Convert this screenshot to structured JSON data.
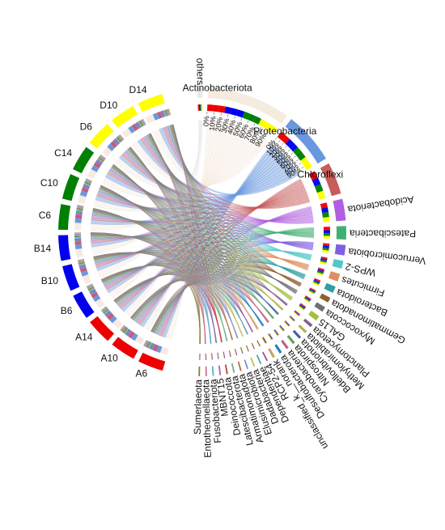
{
  "chart_data": {
    "type": "chord",
    "title": "",
    "samples": [
      "A6",
      "A10",
      "A14",
      "B6",
      "B10",
      "B14",
      "C6",
      "C10",
      "C14",
      "D6",
      "D10",
      "D14"
    ],
    "taxa": [
      "others",
      "Actinobacteriota",
      "Proteobacteria",
      "Chloroflexi",
      "Acidobacteriota",
      "Patescibacteria",
      "Verrucomicrobiota",
      "WPS-2",
      "Firmicutes",
      "Bacteroidota",
      "Gemmatimonadota",
      "Myxococcota",
      "GAL15",
      "Planctomycetota",
      "Methylomirabilota",
      "Bdellovibrionota",
      "Nitrospirota",
      "Cyanobacteria",
      "Desulfobacterota",
      "unclassified_k__norank",
      "RCP2-54",
      "Dependentiae",
      "Dadabacteria",
      "Elusimicrobiota",
      "Armatimonadota",
      "Latescibacterota",
      "Deinococcota",
      "MBNT15",
      "Fusobacteriota",
      "Entotheonellaeota",
      "Sumerlaeota"
    ],
    "taxa_colors": [
      "#e8e8e8",
      "#f6ebe0",
      "#6a98e0",
      "#c85c5c",
      "#b060e0",
      "#40b070",
      "#8060e0",
      "#50c8c8",
      "#e09060",
      "#30a0a0",
      "#906030",
      "#707070",
      "#a0c040",
      "#806090",
      "#b0b040",
      "#4060a0",
      "#60a060",
      "#c06080",
      "#2080c0",
      "#d0a060",
      "#a050a0",
      "#50a0b0",
      "#c0c060",
      "#8090c0",
      "#b07050",
      "#70b090",
      "#c04040",
      "#9070b0",
      "#60b0d0",
      "#d07090",
      "#808040"
    ],
    "sample_colors": [
      "#ee0000",
      "#ee0000",
      "#ee0000",
      "#0000ee",
      "#0000ee",
      "#0000ee",
      "#008000",
      "#008000",
      "#008000",
      "#ffff00",
      "#ffff00",
      "#ffff00"
    ],
    "percent_ticks": [
      "0%",
      "10%",
      "20%",
      "30%",
      "40%",
      "50%",
      "60%",
      "70%",
      "80%",
      "90%"
    ],
    "relative_abundance": {
      "A6": [
        0.02,
        0.3,
        0.18,
        0.12,
        0.09,
        0.07,
        0.04,
        0.03,
        0.03,
        0.03,
        0.02,
        0.02,
        0.02,
        0.02,
        0.01,
        0.01,
        0.01,
        0.01,
        0.01,
        0.01,
        0.01,
        0.01,
        0.005,
        0.005,
        0.005,
        0.005,
        0.005,
        0.005,
        0.005,
        0.005,
        0.005
      ],
      "A10": [
        0.02,
        0.31,
        0.19,
        0.13,
        0.09,
        0.06,
        0.04,
        0.03,
        0.03,
        0.03,
        0.02,
        0.02,
        0.02,
        0.02,
        0.01,
        0.01,
        0.01,
        0.01,
        0.01,
        0.01,
        0.01,
        0.005,
        0.005,
        0.005,
        0.005,
        0.005,
        0.005,
        0.005,
        0.005,
        0.005,
        0.005
      ],
      "A14": [
        0.02,
        0.33,
        0.2,
        0.13,
        0.08,
        0.05,
        0.04,
        0.03,
        0.03,
        0.02,
        0.02,
        0.02,
        0.02,
        0.01,
        0.01,
        0.01,
        0.01,
        0.01,
        0.01,
        0.01,
        0.005,
        0.005,
        0.005,
        0.005,
        0.005,
        0.005,
        0.005,
        0.005,
        0.005,
        0.005,
        0.005
      ],
      "B6": [
        0.02,
        0.32,
        0.2,
        0.12,
        0.08,
        0.06,
        0.04,
        0.03,
        0.03,
        0.03,
        0.02,
        0.02,
        0.02,
        0.01,
        0.01,
        0.01,
        0.01,
        0.01,
        0.01,
        0.01,
        0.005,
        0.005,
        0.005,
        0.005,
        0.005,
        0.005,
        0.005,
        0.005,
        0.005,
        0.005,
        0.005
      ],
      "B10": [
        0.02,
        0.34,
        0.19,
        0.12,
        0.08,
        0.05,
        0.04,
        0.03,
        0.03,
        0.02,
        0.02,
        0.02,
        0.02,
        0.01,
        0.01,
        0.01,
        0.01,
        0.01,
        0.01,
        0.01,
        0.005,
        0.005,
        0.005,
        0.005,
        0.005,
        0.005,
        0.005,
        0.005,
        0.005,
        0.005,
        0.005
      ],
      "B14": [
        0.02,
        0.35,
        0.2,
        0.11,
        0.07,
        0.05,
        0.04,
        0.03,
        0.03,
        0.02,
        0.02,
        0.02,
        0.02,
        0.01,
        0.01,
        0.01,
        0.01,
        0.01,
        0.01,
        0.01,
        0.005,
        0.005,
        0.005,
        0.005,
        0.005,
        0.005,
        0.005,
        0.005,
        0.005,
        0.005,
        0.005
      ],
      "C6": [
        0.02,
        0.3,
        0.21,
        0.13,
        0.09,
        0.05,
        0.04,
        0.03,
        0.03,
        0.03,
        0.02,
        0.02,
        0.02,
        0.01,
        0.01,
        0.01,
        0.01,
        0.01,
        0.01,
        0.01,
        0.005,
        0.005,
        0.005,
        0.005,
        0.005,
        0.005,
        0.005,
        0.005,
        0.005,
        0.005,
        0.005
      ],
      "C10": [
        0.02,
        0.31,
        0.21,
        0.12,
        0.09,
        0.05,
        0.04,
        0.03,
        0.03,
        0.03,
        0.02,
        0.02,
        0.02,
        0.01,
        0.01,
        0.01,
        0.01,
        0.01,
        0.01,
        0.01,
        0.005,
        0.005,
        0.005,
        0.005,
        0.005,
        0.005,
        0.005,
        0.005,
        0.005,
        0.005,
        0.005
      ],
      "C14": [
        0.02,
        0.33,
        0.22,
        0.12,
        0.08,
        0.04,
        0.04,
        0.03,
        0.03,
        0.02,
        0.02,
        0.02,
        0.02,
        0.01,
        0.01,
        0.01,
        0.01,
        0.01,
        0.01,
        0.01,
        0.005,
        0.005,
        0.005,
        0.005,
        0.005,
        0.005,
        0.005,
        0.005,
        0.005,
        0.005,
        0.005
      ],
      "D6": [
        0.02,
        0.31,
        0.2,
        0.13,
        0.09,
        0.05,
        0.04,
        0.03,
        0.03,
        0.03,
        0.02,
        0.02,
        0.02,
        0.01,
        0.01,
        0.01,
        0.01,
        0.01,
        0.01,
        0.01,
        0.005,
        0.005,
        0.005,
        0.005,
        0.005,
        0.005,
        0.005,
        0.005,
        0.005,
        0.005,
        0.005
      ],
      "D10": [
        0.02,
        0.32,
        0.2,
        0.13,
        0.08,
        0.05,
        0.04,
        0.03,
        0.03,
        0.03,
        0.02,
        0.02,
        0.02,
        0.01,
        0.01,
        0.01,
        0.01,
        0.01,
        0.01,
        0.01,
        0.005,
        0.005,
        0.005,
        0.005,
        0.005,
        0.005,
        0.005,
        0.005,
        0.005,
        0.005,
        0.005
      ],
      "D14": [
        0.02,
        0.34,
        0.21,
        0.12,
        0.08,
        0.04,
        0.04,
        0.03,
        0.03,
        0.02,
        0.02,
        0.02,
        0.02,
        0.01,
        0.01,
        0.01,
        0.01,
        0.01,
        0.01,
        0.01,
        0.005,
        0.005,
        0.005,
        0.005,
        0.005,
        0.005,
        0.005,
        0.005,
        0.005,
        0.005,
        0.005
      ]
    }
  }
}
